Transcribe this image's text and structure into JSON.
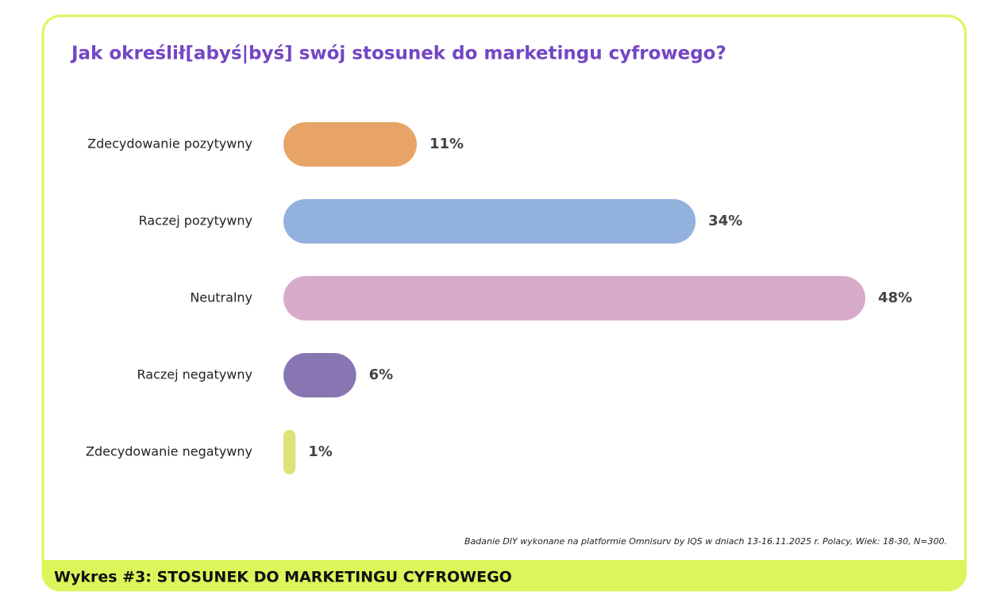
{
  "chart_data": {
    "type": "bar",
    "orientation": "horizontal",
    "title": "Jak określił[abyś|byś] swój stosunek do marketingu cyfrowego?",
    "categories": [
      "Zdecydowanie pozytywny",
      "Raczej pozytywny",
      "Neutralny",
      "Raczej negatywny",
      "Zdecydowanie negatywny"
    ],
    "values": [
      11,
      34,
      48,
      6,
      1
    ],
    "value_labels": [
      "11%",
      "34%",
      "48%",
      "6%",
      "1%"
    ],
    "colors": [
      "#e8a466",
      "#92b1dc",
      "#d8aaca",
      "#8776b2",
      "#dfe27a"
    ],
    "source": "Badanie DIY wykonane na platformie Omnisurv by IQS w dniach 13-16.11.2025 r.  Polacy, Wiek: 18-30, N=300.",
    "caption": "Wykres #3: STOSUNEK DO MARKETINGU CYFROWEGO"
  }
}
